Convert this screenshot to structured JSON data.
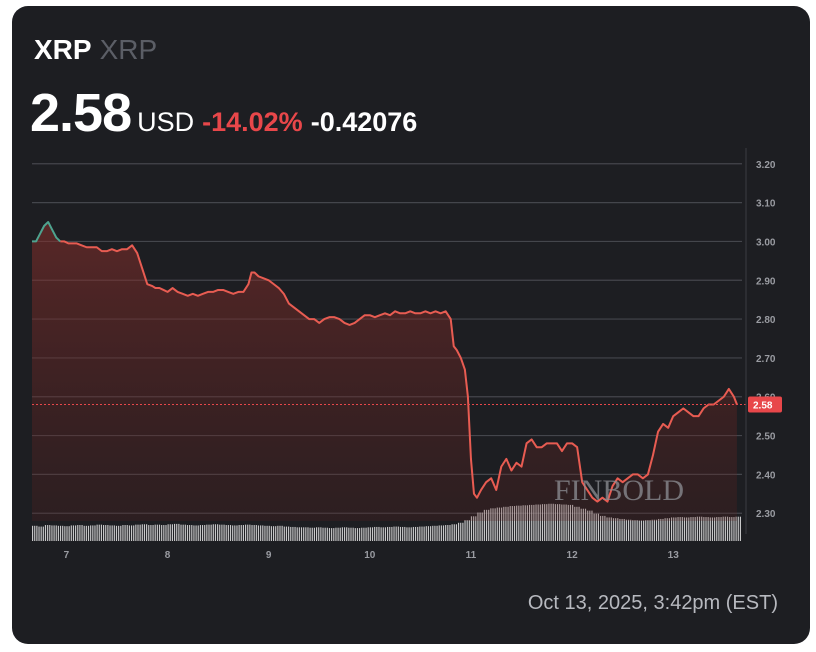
{
  "header": {
    "ticker": "XRP",
    "name": "XRP",
    "price": "2.58",
    "currency": "USD",
    "change_pct": "-14.02%",
    "change_abs": "-0.42076"
  },
  "timestamp": "Oct 13, 2025, 3:42pm (EST)",
  "watermark": "FINBOLD",
  "colors": {
    "background": "#1d1e22",
    "line_down": "#e85c52",
    "line_up": "#4ea38f",
    "area_fill": "#7a2c2a",
    "grid": "#44464c",
    "volume": "#e6e6e6",
    "price_tag": "#e8474a"
  },
  "chart_data": {
    "type": "line",
    "x_ticks": [
      7,
      8,
      9,
      10,
      11,
      12,
      13
    ],
    "x_tick_labels": [
      "7",
      "8",
      "9",
      "10",
      "11",
      "12",
      "13"
    ],
    "x_range": [
      6.66,
      13.68
    ],
    "y_ticks": [
      2.3,
      2.4,
      2.5,
      2.6,
      2.7,
      2.8,
      2.9,
      3.0,
      3.1,
      3.2
    ],
    "y_tick_labels": [
      "2.30",
      "2.40",
      "2.50",
      "2.60",
      "2.70",
      "2.80",
      "2.90",
      "3.00",
      "3.10",
      "3.20"
    ],
    "ylim": [
      2.28,
      3.22
    ],
    "current_price": 2.58,
    "current_price_label": "2.58",
    "series": [
      {
        "x": [
          6.66,
          6.7,
          6.74,
          6.78,
          6.82,
          6.86,
          6.9,
          6.94,
          6.98,
          7.02,
          7.06,
          7.1,
          7.15,
          7.2,
          7.25,
          7.3,
          7.35,
          7.4,
          7.45,
          7.5,
          7.55,
          7.6,
          7.65,
          7.7,
          7.75,
          7.8,
          7.85,
          7.88,
          7.92,
          7.96,
          8.0,
          8.05,
          8.1,
          8.15,
          8.2,
          8.25,
          8.3,
          8.35,
          8.4,
          8.45,
          8.5,
          8.55,
          8.6,
          8.65,
          8.7,
          8.75,
          8.8,
          8.83,
          8.86,
          8.9,
          8.95,
          9.0,
          9.05,
          9.1,
          9.15,
          9.2,
          9.25,
          9.3,
          9.35,
          9.4,
          9.45,
          9.5,
          9.55,
          9.6,
          9.65,
          9.7,
          9.75,
          9.8,
          9.85,
          9.9,
          9.95,
          10.0,
          10.05,
          10.1,
          10.15,
          10.2,
          10.25,
          10.3,
          10.35,
          10.4,
          10.45,
          10.5,
          10.55,
          10.6,
          10.65,
          10.7,
          10.75,
          10.8,
          10.83,
          10.86,
          10.9,
          10.94,
          10.97,
          11.0,
          11.03,
          11.06,
          11.1,
          11.15,
          11.2,
          11.25,
          11.3,
          11.35,
          11.4,
          11.45,
          11.5,
          11.55,
          11.6,
          11.65,
          11.7,
          11.75,
          11.8,
          11.85,
          11.9,
          11.95,
          12.0,
          12.05,
          12.1,
          12.15,
          12.2,
          12.25,
          12.3,
          12.35,
          12.4,
          12.45,
          12.5,
          12.55,
          12.6,
          12.65,
          12.7,
          12.75,
          12.8,
          12.85,
          12.9,
          12.95,
          13.0,
          13.05,
          13.1,
          13.15,
          13.2,
          13.25,
          13.3,
          13.35,
          13.4,
          13.45,
          13.5,
          13.55,
          13.6,
          13.63
        ],
        "y": [
          3.0,
          3.0,
          3.02,
          3.04,
          3.05,
          3.03,
          3.01,
          3.0,
          3.0,
          2.995,
          2.995,
          2.995,
          2.99,
          2.985,
          2.985,
          2.985,
          2.975,
          2.975,
          2.98,
          2.975,
          2.98,
          2.98,
          2.99,
          2.97,
          2.93,
          2.89,
          2.885,
          2.88,
          2.88,
          2.875,
          2.87,
          2.88,
          2.87,
          2.865,
          2.86,
          2.865,
          2.86,
          2.865,
          2.87,
          2.87,
          2.875,
          2.875,
          2.87,
          2.865,
          2.87,
          2.87,
          2.89,
          2.92,
          2.92,
          2.91,
          2.905,
          2.9,
          2.89,
          2.88,
          2.865,
          2.84,
          2.83,
          2.82,
          2.81,
          2.8,
          2.8,
          2.79,
          2.8,
          2.805,
          2.805,
          2.8,
          2.79,
          2.785,
          2.79,
          2.8,
          2.81,
          2.81,
          2.805,
          2.81,
          2.815,
          2.81,
          2.82,
          2.815,
          2.815,
          2.82,
          2.815,
          2.815,
          2.82,
          2.815,
          2.82,
          2.815,
          2.82,
          2.8,
          2.73,
          2.72,
          2.7,
          2.67,
          2.6,
          2.44,
          2.35,
          2.34,
          2.36,
          2.38,
          2.39,
          2.36,
          2.42,
          2.44,
          2.41,
          2.43,
          2.42,
          2.48,
          2.49,
          2.47,
          2.47,
          2.48,
          2.48,
          2.48,
          2.46,
          2.48,
          2.48,
          2.47,
          2.38,
          2.36,
          2.34,
          2.33,
          2.34,
          2.33,
          2.37,
          2.39,
          2.38,
          2.39,
          2.4,
          2.4,
          2.39,
          2.4,
          2.45,
          2.51,
          2.53,
          2.52,
          2.55,
          2.56,
          2.57,
          2.56,
          2.55,
          2.55,
          2.57,
          2.58,
          2.58,
          2.59,
          2.6,
          2.62,
          2.6,
          2.58
        ]
      }
    ],
    "volume": [
      0.4,
      0.38,
      0.42,
      0.41,
      0.4,
      0.39,
      0.41,
      0.42,
      0.4,
      0.41,
      0.43,
      0.42,
      0.41,
      0.4,
      0.42,
      0.41,
      0.43,
      0.44,
      0.42,
      0.43,
      0.42,
      0.44,
      0.45,
      0.43,
      0.42,
      0.41,
      0.42,
      0.43,
      0.44,
      0.43,
      0.42,
      0.41,
      0.42,
      0.43,
      0.42,
      0.41,
      0.4,
      0.39,
      0.4,
      0.38,
      0.37,
      0.36,
      0.36,
      0.35,
      0.36,
      0.35,
      0.34,
      0.35,
      0.36,
      0.35,
      0.34,
      0.35,
      0.36,
      0.37,
      0.36,
      0.37,
      0.38,
      0.37,
      0.36,
      0.37,
      0.38,
      0.39,
      0.4,
      0.41,
      0.42,
      0.44,
      0.48,
      0.55,
      0.65,
      0.75,
      0.82,
      0.86,
      0.88,
      0.9,
      0.92,
      0.93,
      0.94,
      0.95,
      0.96,
      0.97,
      0.98,
      0.97,
      0.96,
      0.95,
      0.9,
      0.85,
      0.8,
      0.72,
      0.66,
      0.62,
      0.6,
      0.58,
      0.56,
      0.55,
      0.54,
      0.55,
      0.56,
      0.58,
      0.6,
      0.62,
      0.63,
      0.62,
      0.63,
      0.64,
      0.63,
      0.62,
      0.63,
      0.64,
      0.63,
      0.64
    ]
  }
}
